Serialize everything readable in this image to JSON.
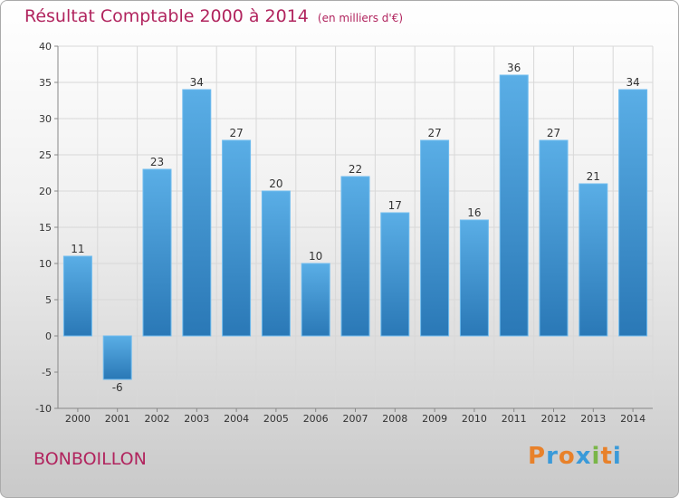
{
  "chart_data": {
    "type": "bar",
    "title": "Résultat Comptable 2000 à 2014",
    "unit": "(en milliers d'€)",
    "categories": [
      "2000",
      "2001",
      "2002",
      "2003",
      "2004",
      "2005",
      "2006",
      "2007",
      "2008",
      "2009",
      "2010",
      "2011",
      "2012",
      "2013",
      "2014"
    ],
    "values": [
      11,
      -6,
      23,
      34,
      27,
      20,
      10,
      22,
      17,
      27,
      16,
      36,
      27,
      21,
      34
    ],
    "ylim": [
      -10,
      40
    ],
    "yticks": [
      -10,
      -5,
      0,
      5,
      10,
      15,
      20,
      25,
      30,
      35,
      40
    ],
    "grid": true,
    "xlabel": "",
    "ylabel": ""
  },
  "place": "BONBOILLON",
  "logo": {
    "letters": [
      "P",
      "r",
      "o",
      "x",
      "i",
      "t",
      "i"
    ]
  },
  "colors": {
    "title": "#b1245e",
    "bar_top": "#5aaee6",
    "bar_bottom": "#2a78b6",
    "grid": "#d8d8d8",
    "logo": [
      "#e8812a",
      "#3a9ad9",
      "#e8812a",
      "#3a9ad9",
      "#7ab648",
      "#e8812a",
      "#3a9ad9"
    ]
  }
}
